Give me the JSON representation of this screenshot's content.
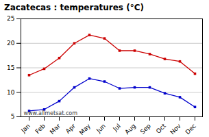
{
  "chart_data": {
    "type": "line",
    "title": "Zacatecas : temperatures (°C)",
    "categories": [
      "Jan",
      "Feb",
      "Mar",
      "Apr",
      "May",
      "Jun",
      "Jul",
      "Aug",
      "Sep",
      "Oct",
      "Nov",
      "Dec"
    ],
    "series": [
      {
        "color": "#cc0000",
        "marker": "square",
        "values": [
          13.5,
          14.8,
          17.0,
          20.0,
          21.7,
          21.0,
          18.5,
          18.5,
          17.8,
          16.8,
          16.3,
          13.8
        ]
      },
      {
        "color": "#0000cc",
        "marker": "square",
        "values": [
          6.2,
          6.5,
          8.2,
          11.0,
          12.8,
          12.2,
          10.8,
          11.0,
          11.0,
          9.8,
          9.0,
          7.0
        ]
      }
    ],
    "ylim": [
      5,
      25
    ],
    "yticks": [
      5,
      10,
      15,
      20,
      25
    ],
    "grid": true,
    "annotation": "www.allmetsat.com"
  }
}
